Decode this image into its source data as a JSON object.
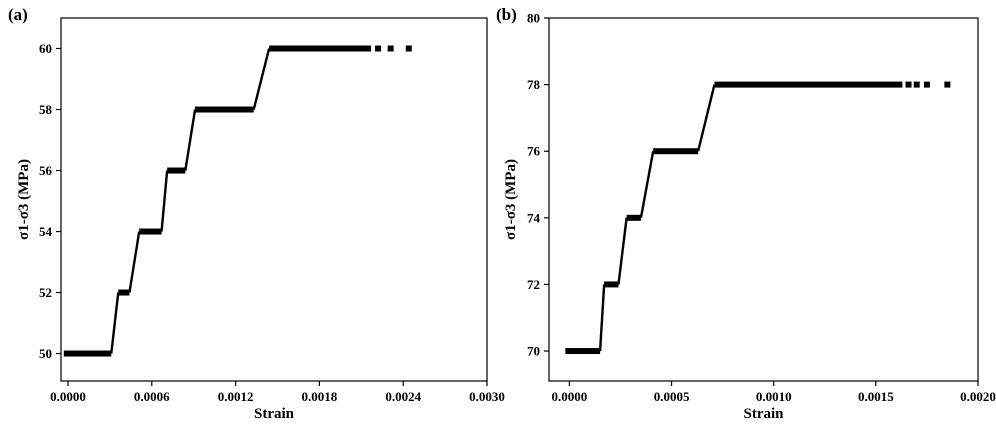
{
  "chart_data": [
    {
      "panel": "(a)",
      "type": "scatter",
      "title": "",
      "xlabel": "Strain",
      "ylabel": "σ1-σ3 (MPa)",
      "xlim": [
        -5e-05,
        0.003
      ],
      "ylim": [
        49.1,
        61
      ],
      "xticks": [
        0.0,
        0.0006,
        0.0012,
        0.0018,
        0.0024,
        0.003
      ],
      "xtick_labels": [
        "0.0000",
        "0.0006",
        "0.0012",
        "0.0018",
        "0.0024",
        "0.0030"
      ],
      "yticks": [
        50,
        52,
        54,
        56,
        58,
        60
      ],
      "ytick_labels": [
        "50",
        "52",
        "54",
        "56",
        "58",
        "60"
      ],
      "grid": false,
      "series": [
        {
          "plateaus": [
            {
              "y": 50,
              "x_start": -3e-05,
              "x_end": 0.00031
            },
            {
              "y": 52,
              "x_start": 0.00036,
              "x_end": 0.00044
            },
            {
              "y": 54,
              "x_start": 0.00051,
              "x_end": 0.00067
            },
            {
              "y": 56,
              "x_start": 0.00071,
              "x_end": 0.00084
            },
            {
              "y": 58,
              "x_start": 0.00091,
              "x_end": 0.00133
            },
            {
              "y": 60,
              "x_start": 0.00144,
              "x_end": 0.00217
            }
          ],
          "isolated_points": [
            {
              "x": 0.00222,
              "y": 60
            },
            {
              "x": 0.00231,
              "y": 60
            },
            {
              "x": 0.00244,
              "y": 60
            }
          ]
        }
      ]
    },
    {
      "panel": "(b)",
      "type": "scatter",
      "title": "",
      "xlabel": "Strain",
      "ylabel": "σ1-σ3 (MPa)",
      "xlim": [
        -0.0001,
        0.002
      ],
      "ylim": [
        69.1,
        80
      ],
      "xticks": [
        0.0,
        0.0005,
        0.001,
        0.0015,
        0.002
      ],
      "xtick_labels": [
        "0.0000",
        "0.0005",
        "0.0010",
        "0.0015",
        "0.0020"
      ],
      "yticks": [
        70,
        72,
        74,
        76,
        78,
        80
      ],
      "ytick_labels": [
        "70",
        "72",
        "74",
        "76",
        "78",
        "80"
      ],
      "grid": false,
      "series": [
        {
          "plateaus": [
            {
              "y": 70,
              "x_start": -2e-05,
              "x_end": 0.00015
            },
            {
              "y": 72,
              "x_start": 0.00017,
              "x_end": 0.00024
            },
            {
              "y": 74,
              "x_start": 0.00028,
              "x_end": 0.00035
            },
            {
              "y": 76,
              "x_start": 0.00041,
              "x_end": 0.00063
            },
            {
              "y": 78,
              "x_start": 0.00071,
              "x_end": 0.00163
            }
          ],
          "isolated_points": [
            {
              "x": 0.00166,
              "y": 78
            },
            {
              "x": 0.0017,
              "y": 78
            },
            {
              "x": 0.00175,
              "y": 78
            },
            {
              "x": 0.00185,
              "y": 78
            }
          ]
        }
      ]
    }
  ]
}
